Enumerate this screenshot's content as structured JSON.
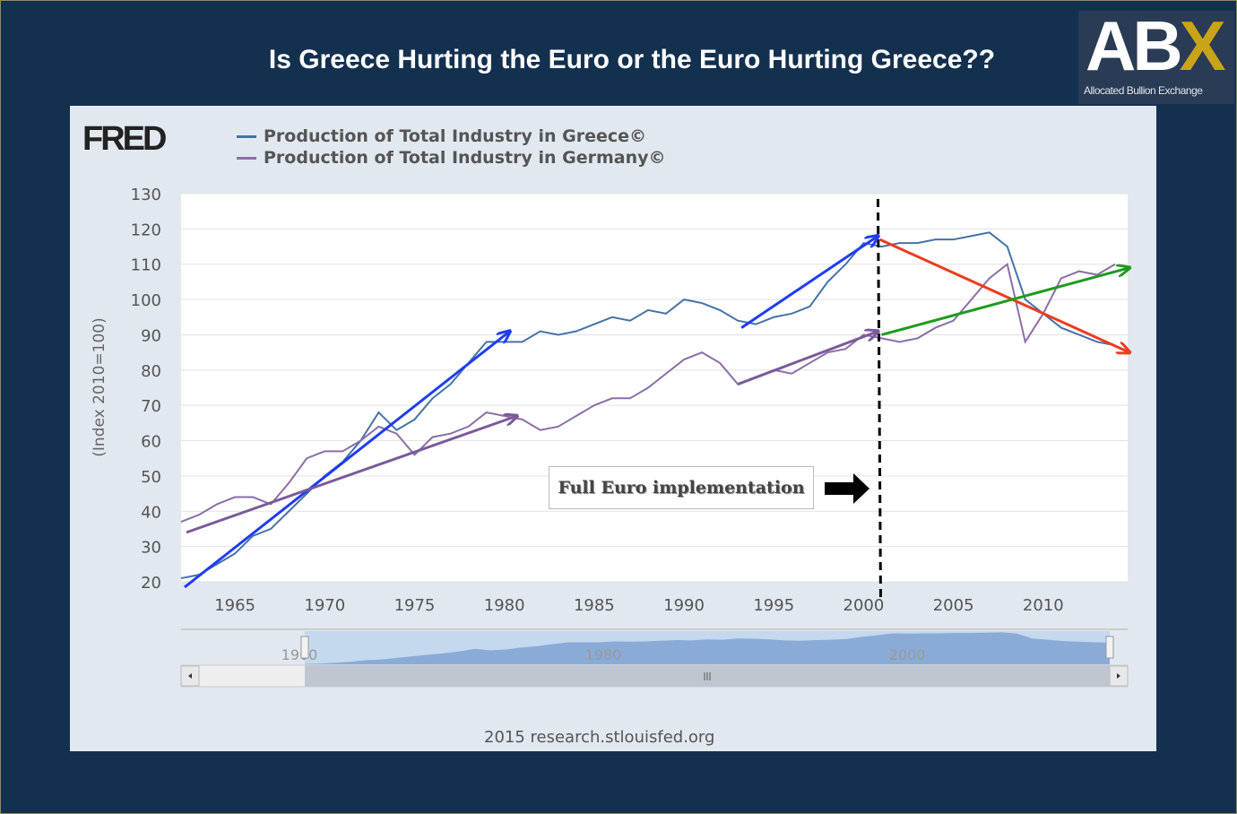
{
  "slide_title": "Is Greece Hurting the Euro or the Euro Hurting Greece??",
  "logo": {
    "text": "ABX",
    "subtitle": "Allocated Bullion Exchange",
    "accent": "#c8a417"
  },
  "fred_logo": "FRED",
  "footer": "2015 research.stlouisfed.org",
  "chart_data": {
    "type": "line",
    "ylabel": "(Index 2010=100)",
    "ylim": [
      20,
      130
    ],
    "yticks": [
      20,
      30,
      40,
      50,
      60,
      70,
      80,
      90,
      100,
      110,
      120,
      130
    ],
    "xlim": [
      1962,
      2014.7
    ],
    "xticks": [
      1965,
      1970,
      1975,
      1980,
      1985,
      1990,
      1995,
      2000,
      2005,
      2010
    ],
    "grid": true,
    "legend": "top-left",
    "x": [
      1962,
      1963,
      1964,
      1965,
      1966,
      1967,
      1968,
      1969,
      1970,
      1971,
      1972,
      1973,
      1974,
      1975,
      1976,
      1977,
      1978,
      1979,
      1980,
      1981,
      1982,
      1983,
      1984,
      1985,
      1986,
      1987,
      1988,
      1989,
      1990,
      1991,
      1992,
      1993,
      1994,
      1995,
      1996,
      1997,
      1998,
      1999,
      2000,
      2001,
      2002,
      2003,
      2004,
      2005,
      2006,
      2007,
      2008,
      2009,
      2010,
      2011,
      2012,
      2013,
      2014
    ],
    "series": [
      {
        "name": "Production of Total Industry in Greece©",
        "color": "#4572a7",
        "values": [
          21,
          22,
          25,
          28,
          33,
          35,
          40,
          45,
          50,
          54,
          60,
          68,
          63,
          66,
          72,
          76,
          82,
          88,
          88,
          88,
          91,
          90,
          91,
          93,
          95,
          94,
          97,
          96,
          100,
          99,
          97,
          94,
          93,
          95,
          96,
          98,
          105,
          110,
          116,
          115,
          116,
          116,
          117,
          117,
          118,
          119,
          115,
          100,
          96,
          92,
          90,
          88,
          87
        ]
      },
      {
        "name": "Production of Total Industry in Germany©",
        "color": "#8a6fa8",
        "values": [
          37,
          39,
          42,
          44,
          44,
          42,
          48,
          55,
          57,
          57,
          60,
          64,
          62,
          56,
          61,
          62,
          64,
          68,
          67,
          66,
          63,
          64,
          67,
          70,
          72,
          72,
          75,
          79,
          83,
          85,
          82,
          76,
          78,
          80,
          79,
          82,
          85,
          86,
          90,
          89,
          88,
          89,
          92,
          94,
          100,
          106,
          110,
          88,
          96,
          106,
          108,
          107,
          110
        ]
      }
    ],
    "annotations": {
      "arrows": [
        {
          "color": "#1f3cf5",
          "from": [
            1962.2,
            18.5
          ],
          "to": [
            1980.3,
            91
          ]
        },
        {
          "color": "#7a5a9a",
          "from": [
            1962.3,
            34
          ],
          "to": [
            1980.7,
            67
          ]
        },
        {
          "color": "#1f3cf5",
          "from": [
            1993.2,
            92
          ],
          "to": [
            2000.8,
            118
          ]
        },
        {
          "color": "#7a5a9a",
          "from": [
            1993,
            76
          ],
          "to": [
            2000.8,
            91
          ]
        },
        {
          "color": "#f03a1e",
          "from": [
            2000.9,
            117
          ],
          "to": [
            2014.8,
            85
          ]
        },
        {
          "color": "#1f9a1f",
          "from": [
            2001,
            90
          ],
          "to": [
            2014.8,
            109
          ]
        }
      ],
      "vertical_line_year": 2000.8,
      "label": "Full Euro implementation"
    },
    "navigator": {
      "ticks": [
        "1960",
        "1980",
        "2000"
      ]
    }
  }
}
